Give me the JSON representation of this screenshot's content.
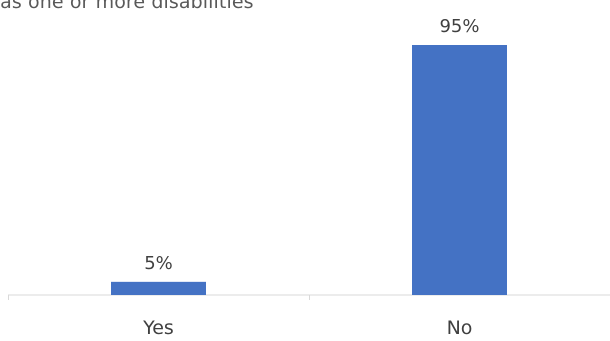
{
  "chart_data": {
    "type": "bar",
    "title": "has one or more disabilities",
    "categories": [
      "Yes",
      "No"
    ],
    "values": [
      5,
      95
    ],
    "value_labels": [
      "5%",
      "95%"
    ],
    "ylim": [
      0,
      100
    ],
    "xlabel": "",
    "ylabel": "",
    "grid": false,
    "legend": "none",
    "bar_color": "#4472C4",
    "axis_color": "#D9D9D9",
    "label_color": "#404040"
  }
}
